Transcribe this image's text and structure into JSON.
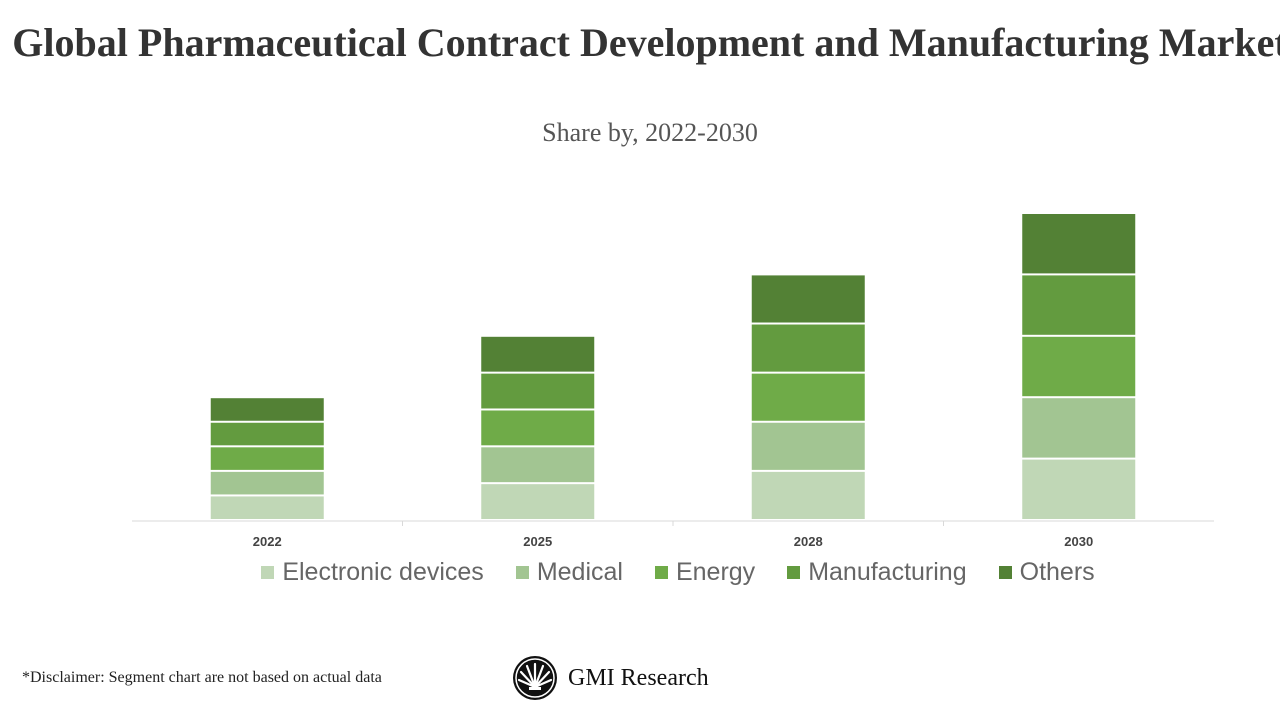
{
  "chart_data": {
    "type": "bar",
    "stacked": true,
    "title": "Global Pharmaceutical Contract Development and Manufacturing Market",
    "subtitle": "Share by, 2022-2030",
    "categories": [
      "2022",
      "2025",
      "2028",
      "2030"
    ],
    "series": [
      {
        "name": "Electronic devices",
        "color": "#C0D7B6",
        "values": [
          2,
          3,
          4,
          5
        ]
      },
      {
        "name": "Medical",
        "color": "#A2C592",
        "values": [
          2,
          3,
          4,
          5
        ]
      },
      {
        "name": "Energy",
        "color": "#6FAB48",
        "values": [
          2,
          3,
          4,
          5
        ]
      },
      {
        "name": "Manufacturing",
        "color": "#639B3F",
        "values": [
          2,
          3,
          4,
          5
        ]
      },
      {
        "name": "Others",
        "color": "#538135",
        "values": [
          2,
          3,
          4,
          5
        ]
      }
    ],
    "ylim": [
      0,
      25
    ],
    "grid": false,
    "legend": "bottom"
  },
  "footer": {
    "disclaimer": "*Disclaimer:   Segment chart are not based on actual data",
    "logo_text": "GMI Research"
  }
}
